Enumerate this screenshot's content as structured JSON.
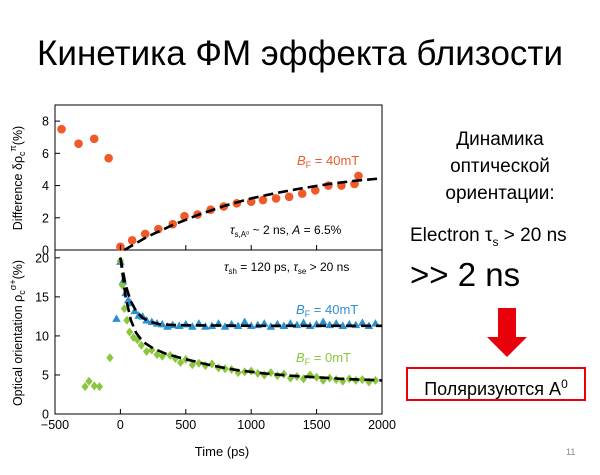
{
  "slide": {
    "title": "Кинетика ФМ эффекта близости",
    "side_lines": [
      "Динамика",
      "оптической",
      "ориентации:"
    ],
    "electron_prefix": "Electron τ",
    "electron_sub": "s",
    "electron_suffix": " > 20 ns",
    "big_text": ">> 2 ns",
    "box_text": "Поляризуются A",
    "box_sup": "0",
    "page_number": "11",
    "arrow_color": "#e8000b",
    "box_border_color": "#e8000b"
  },
  "chart_data": [
    {
      "type": "scatter",
      "panel": "top",
      "ylabel": "Difference δρc^π(%)",
      "ylim": [
        0,
        9
      ],
      "yticks": [
        0,
        2,
        4,
        6,
        8
      ],
      "xlim": [
        -500,
        2000
      ],
      "annotations": {
        "field": "B_F = 40mT",
        "fit": "τ_s,A0 ~ 2 ns, A = 6.5%"
      },
      "series": [
        {
          "color": "#f05a28",
          "marker": "circle",
          "points": [
            [
              -450,
              7.5
            ],
            [
              -320,
              6.6
            ],
            [
              -200,
              6.9
            ],
            [
              -90,
              5.7
            ],
            [
              0,
              0.2
            ],
            [
              90,
              0.6
            ],
            [
              190,
              1.0
            ],
            [
              290,
              1.3
            ],
            [
              400,
              1.6
            ],
            [
              490,
              2.1
            ],
            [
              590,
              2.2
            ],
            [
              690,
              2.5
            ],
            [
              790,
              2.7
            ],
            [
              890,
              2.9
            ],
            [
              1000,
              3.0
            ],
            [
              1090,
              3.1
            ],
            [
              1190,
              3.2
            ],
            [
              1290,
              3.3
            ],
            [
              1390,
              3.5
            ],
            [
              1490,
              3.7
            ],
            [
              1590,
              4.0
            ],
            [
              1690,
              4.0
            ],
            [
              1790,
              4.1
            ],
            [
              1820,
              4.6
            ]
          ]
        }
      ],
      "fit_curve": [
        [
          30,
          0
        ],
        [
          200,
          0.8
        ],
        [
          400,
          1.55
        ],
        [
          600,
          2.2
        ],
        [
          800,
          2.75
        ],
        [
          1000,
          3.2
        ],
        [
          1200,
          3.55
        ],
        [
          1400,
          3.85
        ],
        [
          1600,
          4.1
        ],
        [
          1800,
          4.3
        ],
        [
          2000,
          4.45
        ]
      ]
    },
    {
      "type": "scatter",
      "panel": "bottom",
      "ylabel": "Optical orientation ρc^σ+(%)",
      "xlabel": "Time (ps)",
      "ylim": [
        0,
        21
      ],
      "yticks": [
        0,
        5,
        10,
        15,
        20
      ],
      "xlim": [
        -500,
        2000
      ],
      "xticks": [
        -500,
        0,
        500,
        1000,
        1500,
        2000
      ],
      "xtick_labels": [
        "−500",
        "0",
        "500",
        "1000",
        "1500",
        "2000"
      ],
      "annotations": {
        "times": "τ_sh = 120 ps, τ_se > 20 ns",
        "field_40": "B_F = 40mT",
        "field_0": "B_F = 0mT"
      },
      "series": [
        {
          "name": "B_F = 40mT",
          "color": "#2e8fd0",
          "marker": "triangle",
          "points": [
            [
              -30,
              12.2
            ],
            [
              0,
              19.5
            ],
            [
              20,
              17.0
            ],
            [
              40,
              15.5
            ],
            [
              60,
              14.6
            ],
            [
              80,
              14.2
            ],
            [
              110,
              13.2
            ],
            [
              140,
              12.6
            ],
            [
              170,
              12.5
            ],
            [
              200,
              12.0
            ],
            [
              240,
              11.8
            ],
            [
              280,
              11.6
            ],
            [
              320,
              11.5
            ],
            [
              360,
              11.2
            ],
            [
              400,
              11.4
            ],
            [
              450,
              11.3
            ],
            [
              500,
              11.5
            ],
            [
              550,
              11.2
            ],
            [
              600,
              11.6
            ],
            [
              650,
              11.2
            ],
            [
              700,
              11.3
            ],
            [
              750,
              11.6
            ],
            [
              800,
              11.2
            ],
            [
              850,
              11.5
            ],
            [
              900,
              11.3
            ],
            [
              950,
              11.8
            ],
            [
              1000,
              11.3
            ],
            [
              1050,
              11.4
            ],
            [
              1100,
              11.6
            ],
            [
              1150,
              11.2
            ],
            [
              1200,
              11.5
            ],
            [
              1250,
              11.3
            ],
            [
              1300,
              11.6
            ],
            [
              1350,
              11.4
            ],
            [
              1400,
              11.7
            ],
            [
              1450,
              11.3
            ],
            [
              1500,
              11.5
            ],
            [
              1550,
              11.8
            ],
            [
              1600,
              11.4
            ],
            [
              1650,
              11.6
            ],
            [
              1700,
              11.3
            ],
            [
              1750,
              11.5
            ],
            [
              1800,
              11.4
            ],
            [
              1850,
              11.7
            ],
            [
              1900,
              11.3
            ],
            [
              1950,
              11.6
            ]
          ]
        },
        {
          "name": "B_F = 0mT",
          "color": "#8cc63f",
          "marker": "diamond",
          "points": [
            [
              -270,
              3.5
            ],
            [
              -240,
              4.2
            ],
            [
              -200,
              3.6
            ],
            [
              -160,
              3.5
            ],
            [
              -80,
              7.2
            ],
            [
              0,
              19.6
            ],
            [
              15,
              16.5
            ],
            [
              30,
              13.5
            ],
            [
              50,
              12.0
            ],
            [
              70,
              10.5
            ],
            [
              100,
              9.8
            ],
            [
              130,
              9.5
            ],
            [
              160,
              8.8
            ],
            [
              200,
              8.0
            ],
            [
              240,
              8.2
            ],
            [
              280,
              7.6
            ],
            [
              320,
              7.4
            ],
            [
              380,
              7.5
            ],
            [
              420,
              7.1
            ],
            [
              460,
              6.6
            ],
            [
              500,
              7.0
            ],
            [
              550,
              6.3
            ],
            [
              600,
              6.5
            ],
            [
              650,
              6.2
            ],
            [
              700,
              6.4
            ],
            [
              750,
              5.9
            ],
            [
              800,
              5.8
            ],
            [
              850,
              5.7
            ],
            [
              900,
              5.3
            ],
            [
              950,
              5.4
            ],
            [
              1000,
              5.5
            ],
            [
              1050,
              5.2
            ],
            [
              1100,
              5.0
            ],
            [
              1150,
              5.3
            ],
            [
              1200,
              4.9
            ],
            [
              1250,
              5.1
            ],
            [
              1300,
              4.6
            ],
            [
              1350,
              4.8
            ],
            [
              1400,
              4.5
            ],
            [
              1450,
              5.0
            ],
            [
              1500,
              4.7
            ],
            [
              1550,
              4.3
            ],
            [
              1600,
              4.6
            ],
            [
              1650,
              4.4
            ],
            [
              1700,
              4.2
            ],
            [
              1750,
              4.5
            ],
            [
              1800,
              4.3
            ],
            [
              1850,
              4.4
            ],
            [
              1900,
              4.1
            ],
            [
              1950,
              4.3
            ]
          ]
        }
      ],
      "fit_curves": [
        [
          [
            0,
            20
          ],
          [
            40,
            16.5
          ],
          [
            80,
            14.4
          ],
          [
            120,
            13.2
          ],
          [
            170,
            12.3
          ],
          [
            230,
            11.8
          ],
          [
            300,
            11.5
          ],
          [
            400,
            11.4
          ],
          [
            600,
            11.35
          ],
          [
            1000,
            11.3
          ],
          [
            2000,
            11.3
          ]
        ],
        [
          [
            0,
            20
          ],
          [
            40,
            15.0
          ],
          [
            80,
            12.0
          ],
          [
            120,
            10.4
          ],
          [
            170,
            9.3
          ],
          [
            250,
            8.4
          ],
          [
            350,
            7.7
          ],
          [
            500,
            7.0
          ],
          [
            700,
            6.2
          ],
          [
            900,
            5.6
          ],
          [
            1100,
            5.2
          ],
          [
            1300,
            4.9
          ],
          [
            1500,
            4.7
          ],
          [
            1700,
            4.5
          ],
          [
            2000,
            4.3
          ]
        ]
      ]
    }
  ]
}
